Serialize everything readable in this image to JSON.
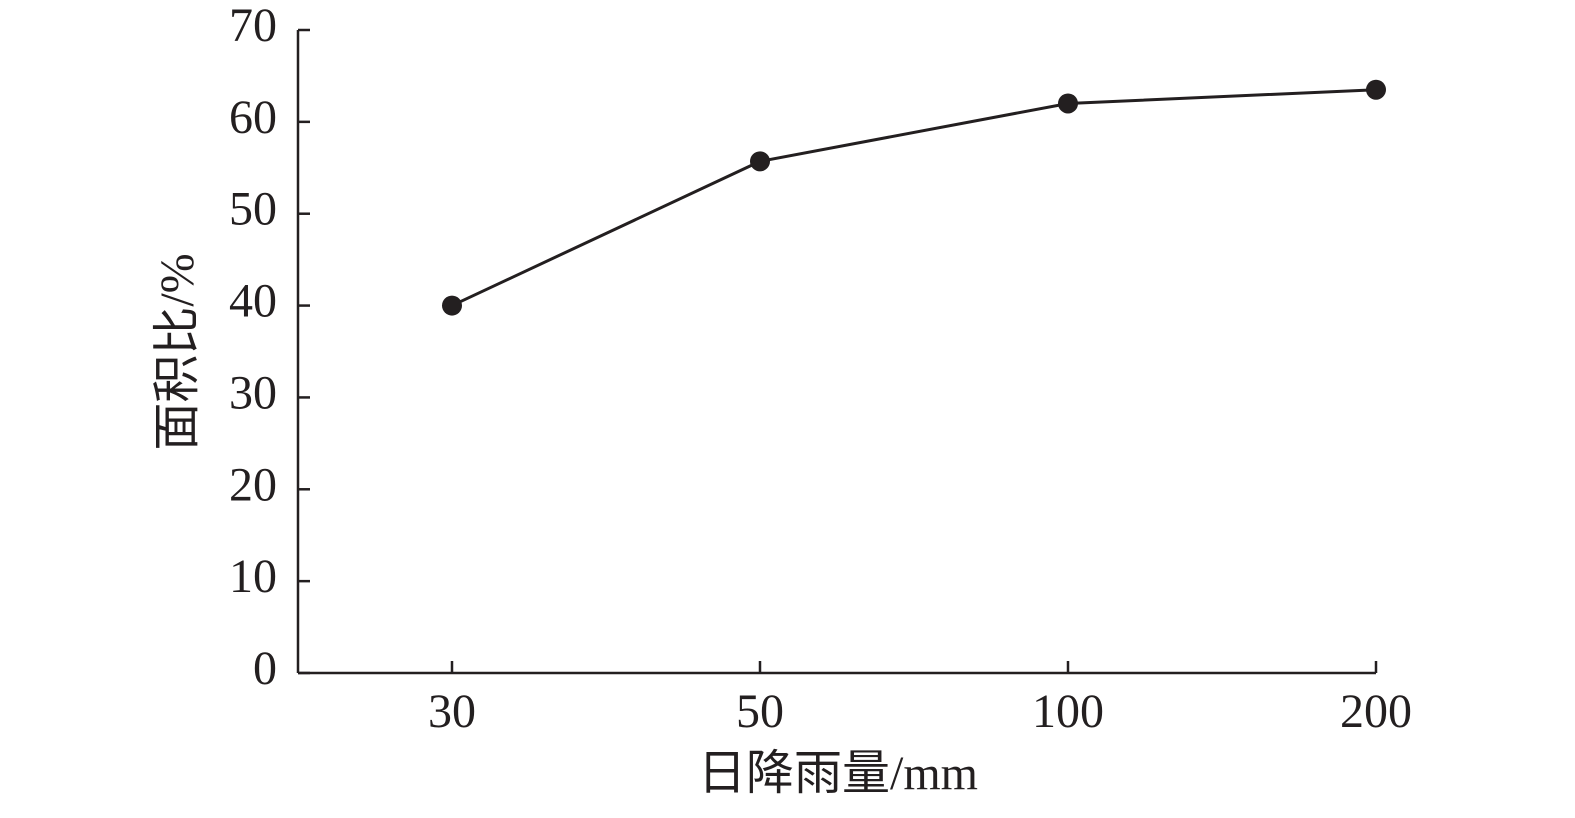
{
  "chart_data": {
    "type": "line",
    "categories": [
      "30",
      "50",
      "100",
      "200"
    ],
    "x_label": "日降雨量/mm",
    "y_label": "面积比/%",
    "series": [
      {
        "color": "#231f20",
        "values": [
          40,
          55.7,
          62,
          63.5
        ]
      }
    ],
    "ylim": [
      0,
      70
    ],
    "yticks": [
      0,
      10,
      20,
      30,
      40,
      50,
      60,
      70
    ],
    "grid": false
  }
}
